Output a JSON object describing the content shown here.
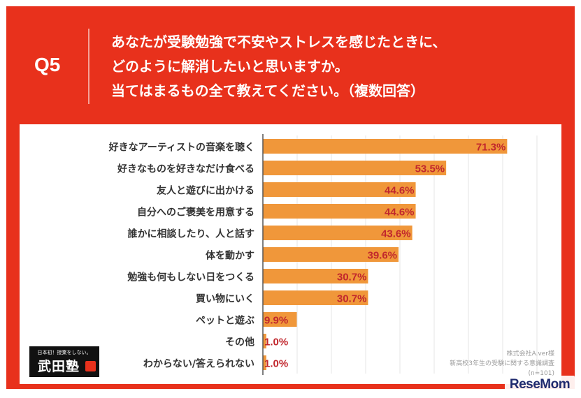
{
  "header": {
    "q_label": "Q5",
    "question_lines": [
      "あなたが受験勉強で不安やストレスを感じたときに、",
      "どのように解消したいと思いますか。",
      "当てはまるもの全て教えてください。（複数回答）"
    ]
  },
  "chart_data": {
    "type": "bar",
    "orientation": "horizontal",
    "categories": [
      "好きなアーティストの音楽を聴く",
      "好きなものを好きなだけ食べる",
      "友人と遊びに出かける",
      "自分へのご褒美を用意する",
      "誰かに相談したり、人と話す",
      "体を動かす",
      "勉強も何もしない日をつくる",
      "買い物にいく",
      "ペットと遊ぶ",
      "その他",
      "わからない/答えられない"
    ],
    "values": [
      71.3,
      53.5,
      44.6,
      44.6,
      43.6,
      39.6,
      30.7,
      30.7,
      9.9,
      1.0,
      1.0
    ],
    "value_labels": [
      "71.3%",
      "53.5%",
      "44.6%",
      "44.6%",
      "43.6%",
      "39.6%",
      "30.7%",
      "30.7%",
      "9.9%",
      "1.0%",
      "1.0%"
    ],
    "xlim": [
      0,
      80
    ],
    "grid": true,
    "legend": "none",
    "bar_color": "#f0973a",
    "label_color": "#c1272d"
  },
  "source": {
    "company": "株式会社A.ver様",
    "survey": "新高校3年生の受験に関する意識調査",
    "n": "(n=101)"
  },
  "logo": {
    "top_text": "日本初！授業をしない。",
    "main_text": "武田塾"
  },
  "watermark": {
    "text": "ReseMom"
  },
  "colors": {
    "header_bg": "#e8311c",
    "panel_bg": "#ffffff",
    "grid": "#e6e6e6",
    "axis": "#555555"
  }
}
